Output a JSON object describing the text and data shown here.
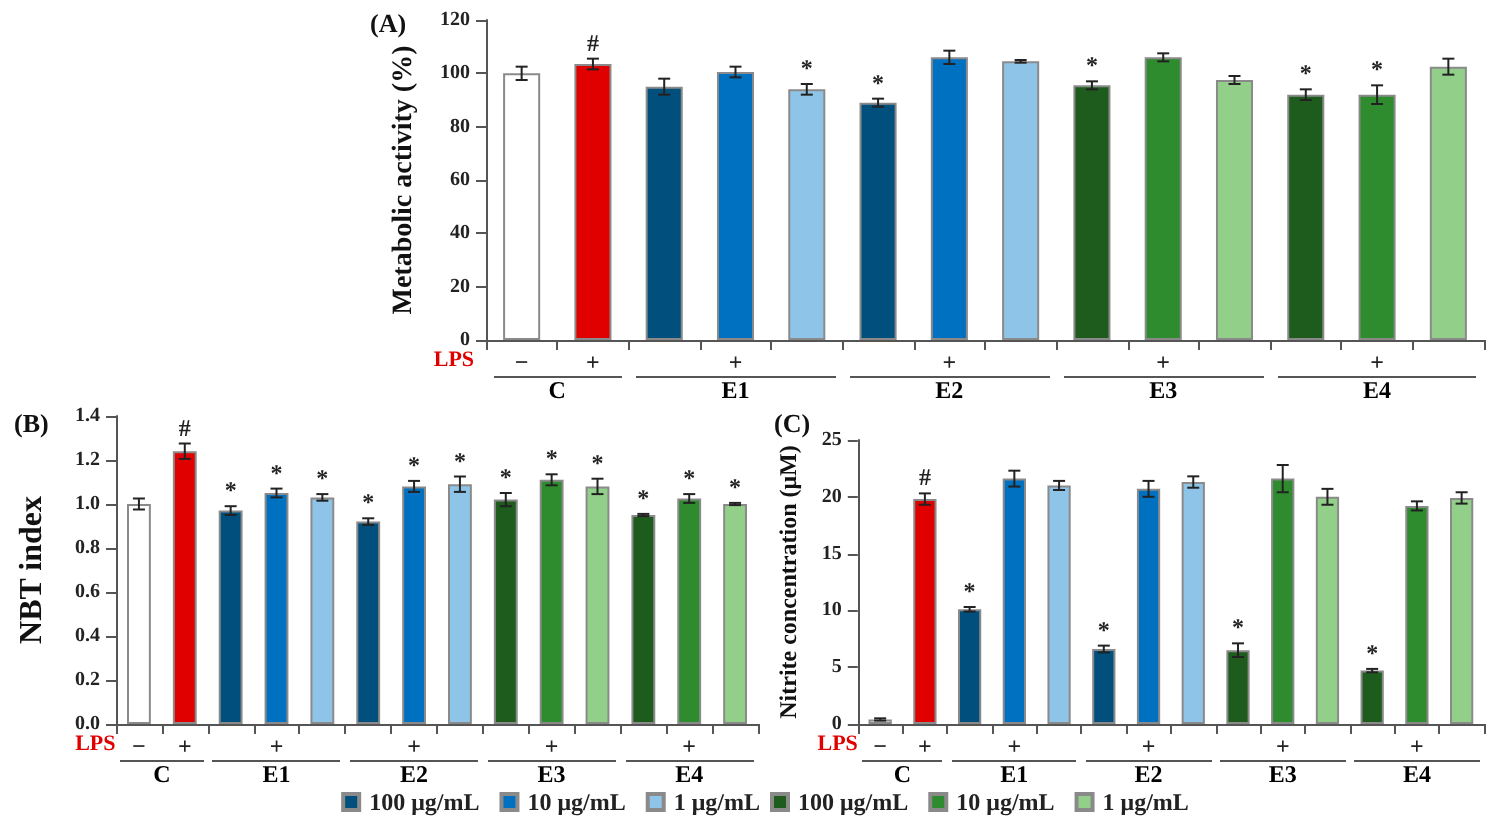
{
  "chart_data": [
    {
      "type": "bar",
      "title": "(A)",
      "ylabel": "Metabolic activity (%)",
      "categories": [
        "−",
        "+",
        null,
        "+",
        null,
        null,
        "+",
        null,
        null,
        "+",
        null,
        null,
        "+",
        null
      ],
      "ylim": [
        0,
        120
      ],
      "yticks": [
        0,
        20,
        40,
        60,
        80,
        100,
        120
      ],
      "stacked": true,
      "grid": false,
      "legend": false,
      "annotations": [
        "LPS",
        "C",
        "E1",
        "E2",
        "E3",
        "E4"
      ],
      "series": [
        {
          "color": "#ffffff",
          "values": [
            100,
            null,
            null,
            null,
            null,
            null,
            null,
            null,
            null,
            null,
            null,
            null,
            null,
            null
          ],
          "errors": [
            2.5,
            null,
            null,
            null,
            null,
            null,
            null,
            null,
            null,
            null,
            null,
            null,
            null,
            null
          ],
          "value_labels": [
            null,
            null,
            null,
            null,
            null,
            null,
            null,
            null,
            null,
            null,
            null,
            null,
            null,
            null
          ]
        },
        {
          "color": "#e00000",
          "values": [
            null,
            103.5,
            null,
            null,
            null,
            null,
            null,
            null,
            null,
            null,
            null,
            null,
            null,
            null
          ],
          "errors": [
            null,
            2,
            null,
            null,
            null,
            null,
            null,
            null,
            null,
            null,
            null,
            null,
            null,
            null
          ],
          "value_labels": [
            null,
            "#",
            null,
            null,
            null,
            null,
            null,
            null,
            null,
            null,
            null,
            null,
            null,
            null
          ]
        },
        {
          "color": "#004f7c",
          "values": [
            null,
            null,
            95,
            null,
            null,
            89,
            null,
            null,
            null,
            null,
            null,
            null,
            null,
            null
          ],
          "errors": [
            null,
            null,
            3,
            null,
            null,
            1.5,
            null,
            null,
            null,
            null,
            null,
            null,
            null,
            null
          ],
          "value_labels": [
            null,
            null,
            null,
            null,
            null,
            "*",
            null,
            null,
            null,
            null,
            null,
            null,
            null,
            null
          ]
        },
        {
          "color": "#0070c0",
          "values": [
            null,
            null,
            null,
            100.5,
            null,
            null,
            106,
            null,
            null,
            null,
            null,
            null,
            null,
            null
          ],
          "errors": [
            null,
            null,
            null,
            2,
            null,
            null,
            2.5,
            null,
            null,
            null,
            null,
            null,
            null,
            null
          ],
          "value_labels": [
            null,
            null,
            null,
            null,
            null,
            null,
            null,
            null,
            null,
            null,
            null,
            null,
            null,
            null
          ]
        },
        {
          "color": "#8ec4e8",
          "values": [
            null,
            null,
            null,
            null,
            94,
            null,
            null,
            104.5,
            null,
            null,
            null,
            null,
            null,
            null
          ],
          "errors": [
            null,
            null,
            null,
            null,
            2,
            null,
            null,
            0.5,
            null,
            null,
            null,
            null,
            null,
            null
          ],
          "value_labels": [
            null,
            null,
            null,
            null,
            "*",
            null,
            null,
            null,
            null,
            null,
            null,
            null,
            null,
            null
          ]
        },
        {
          "color": "#1e5c1e",
          "values": [
            null,
            null,
            null,
            null,
            null,
            null,
            null,
            null,
            95.5,
            null,
            null,
            92,
            null,
            null
          ],
          "errors": [
            null,
            null,
            null,
            null,
            null,
            null,
            null,
            null,
            1.5,
            null,
            null,
            2,
            null,
            null
          ],
          "value_labels": [
            null,
            null,
            null,
            null,
            null,
            null,
            null,
            null,
            "*",
            null,
            null,
            "*",
            null,
            null
          ]
        },
        {
          "color": "#2e8b2e",
          "values": [
            null,
            null,
            null,
            null,
            null,
            null,
            null,
            null,
            null,
            106,
            null,
            null,
            92,
            null
          ],
          "errors": [
            null,
            null,
            null,
            null,
            null,
            null,
            null,
            null,
            null,
            1.5,
            null,
            null,
            3.5,
            null
          ],
          "value_labels": [
            null,
            null,
            null,
            null,
            null,
            null,
            null,
            null,
            null,
            null,
            null,
            null,
            "*",
            null
          ]
        },
        {
          "color": "#92d08a",
          "values": [
            null,
            null,
            null,
            null,
            null,
            null,
            null,
            null,
            null,
            null,
            97.5,
            null,
            null,
            102.5
          ],
          "errors": [
            null,
            null,
            null,
            null,
            null,
            null,
            null,
            null,
            null,
            null,
            1.5,
            null,
            null,
            3
          ],
          "value_labels": [
            null,
            null,
            null,
            null,
            null,
            null,
            null,
            null,
            null,
            null,
            null,
            null,
            null,
            null
          ]
        }
      ]
    },
    {
      "type": "bar",
      "title": "(B)",
      "ylabel": "NBT index",
      "categories": [
        "−",
        "+",
        null,
        "+",
        null,
        null,
        "+",
        null,
        null,
        "+",
        null,
        null,
        "+",
        null
      ],
      "ylim": [
        0,
        1.4
      ],
      "yticks": [
        {
          "value": 0,
          "label": "0.0"
        },
        {
          "value": 0.2,
          "label": "0.2"
        },
        {
          "value": 0.4,
          "label": "0.4"
        },
        {
          "value": 0.6,
          "label": "0.6"
        },
        {
          "value": 0.8,
          "label": "0.8"
        },
        {
          "value": 1,
          "label": "1.0"
        },
        {
          "value": 1.2,
          "label": "1.2"
        },
        {
          "value": 1.4,
          "label": "1.4"
        }
      ],
      "stacked": true,
      "grid": false,
      "legend": "bottom right",
      "annotations": [
        "LPS",
        "C",
        "E1",
        "E2",
        "E3",
        "E4"
      ],
      "series": [
        {
          "color": "#ffffff",
          "values": [
            1.0,
            null,
            null,
            null,
            null,
            null,
            null,
            null,
            null,
            null,
            null,
            null,
            null,
            null
          ],
          "errors": [
            0.025,
            null,
            null,
            null,
            null,
            null,
            null,
            null,
            null,
            null,
            null,
            null,
            null,
            null
          ],
          "value_labels": [
            null,
            null,
            null,
            null,
            null,
            null,
            null,
            null,
            null,
            null,
            null,
            null,
            null,
            null
          ]
        },
        {
          "color": "#e00000",
          "values": [
            null,
            1.24,
            null,
            null,
            null,
            null,
            null,
            null,
            null,
            null,
            null,
            null,
            null,
            null
          ],
          "errors": [
            null,
            0.035,
            null,
            null,
            null,
            null,
            null,
            null,
            null,
            null,
            null,
            null,
            null,
            null
          ],
          "value_labels": [
            null,
            "#",
            null,
            null,
            null,
            null,
            null,
            null,
            null,
            null,
            null,
            null,
            null,
            null
          ]
        },
        {
          "name": "100 μg/mL",
          "color": "#004f7c",
          "values": [
            null,
            null,
            0.97,
            null,
            null,
            0.92,
            null,
            null,
            null,
            null,
            null,
            null,
            null,
            null
          ],
          "errors": [
            null,
            null,
            0.02,
            null,
            null,
            0.015,
            null,
            null,
            null,
            null,
            null,
            null,
            null,
            null
          ],
          "value_labels": [
            null,
            null,
            "*",
            null,
            null,
            "*",
            null,
            null,
            null,
            null,
            null,
            null,
            null,
            null
          ]
        },
        {
          "name": "10 μg/mL",
          "color": "#0070c0",
          "values": [
            null,
            null,
            null,
            1.05,
            null,
            null,
            1.08,
            null,
            null,
            null,
            null,
            null,
            null,
            null
          ],
          "errors": [
            null,
            null,
            null,
            0.02,
            null,
            null,
            0.025,
            null,
            null,
            null,
            null,
            null,
            null,
            null
          ],
          "value_labels": [
            null,
            null,
            null,
            "*",
            null,
            null,
            "*",
            null,
            null,
            null,
            null,
            null,
            null,
            null
          ]
        },
        {
          "name": "1 μg/mL",
          "color": "#8ec4e8",
          "values": [
            null,
            null,
            null,
            null,
            1.03,
            null,
            null,
            1.09,
            null,
            null,
            null,
            null,
            null,
            null
          ],
          "errors": [
            null,
            null,
            null,
            null,
            0.015,
            null,
            null,
            0.035,
            null,
            null,
            null,
            null,
            null,
            null
          ],
          "value_labels": [
            null,
            null,
            null,
            null,
            "*",
            null,
            null,
            "*",
            null,
            null,
            null,
            null,
            null,
            null
          ]
        },
        {
          "color": "#1e5c1e",
          "values": [
            null,
            null,
            null,
            null,
            null,
            null,
            null,
            null,
            1.02,
            null,
            null,
            0.95,
            null,
            null
          ],
          "errors": [
            null,
            null,
            null,
            null,
            null,
            null,
            null,
            null,
            0.03,
            null,
            null,
            0.005,
            null,
            null
          ],
          "value_labels": [
            null,
            null,
            null,
            null,
            null,
            null,
            null,
            null,
            "*",
            null,
            null,
            "*",
            null,
            null
          ]
        },
        {
          "color": "#2e8b2e",
          "values": [
            null,
            null,
            null,
            null,
            null,
            null,
            null,
            null,
            null,
            1.11,
            null,
            null,
            1.025,
            null
          ],
          "errors": [
            null,
            null,
            null,
            null,
            null,
            null,
            null,
            null,
            null,
            0.025,
            null,
            null,
            0.02,
            null
          ],
          "value_labels": [
            null,
            null,
            null,
            null,
            null,
            null,
            null,
            null,
            null,
            "*",
            null,
            null,
            "*",
            null
          ]
        },
        {
          "color": "#92d08a",
          "values": [
            null,
            null,
            null,
            null,
            null,
            null,
            null,
            null,
            null,
            null,
            1.08,
            null,
            null,
            1.0
          ],
          "errors": [
            null,
            null,
            null,
            null,
            null,
            null,
            null,
            null,
            null,
            null,
            0.035,
            null,
            null,
            0.005
          ],
          "value_labels": [
            null,
            null,
            null,
            null,
            null,
            null,
            null,
            null,
            null,
            null,
            "*",
            null,
            null,
            "*"
          ]
        }
      ]
    },
    {
      "type": "bar",
      "title": "(C)",
      "ylabel": "Nitrite concentration (μM)",
      "categories": [
        "−",
        "+",
        null,
        "+",
        null,
        null,
        "+",
        null,
        null,
        "+",
        null,
        null,
        "+",
        null
      ],
      "ylim": [
        0,
        25
      ],
      "yticks": [
        0,
        5,
        10,
        15,
        20,
        25
      ],
      "stacked": true,
      "grid": false,
      "legend": "bottom left",
      "annotations": [
        "LPS",
        "C",
        "E1",
        "E2",
        "E3",
        "E4"
      ],
      "series": [
        {
          "color": "#ffffff",
          "values": [
            0.4,
            null,
            null,
            null,
            null,
            null,
            null,
            null,
            null,
            null,
            null,
            null,
            null,
            null
          ],
          "errors": [
            0.1,
            null,
            null,
            null,
            null,
            null,
            null,
            null,
            null,
            null,
            null,
            null,
            null,
            null
          ],
          "value_labels": [
            null,
            null,
            null,
            null,
            null,
            null,
            null,
            null,
            null,
            null,
            null,
            null,
            null,
            null
          ]
        },
        {
          "color": "#e00000",
          "values": [
            null,
            19.8,
            null,
            null,
            null,
            null,
            null,
            null,
            null,
            null,
            null,
            null,
            null,
            null
          ],
          "errors": [
            null,
            0.5,
            null,
            null,
            null,
            null,
            null,
            null,
            null,
            null,
            null,
            null,
            null,
            null
          ],
          "value_labels": [
            null,
            "#",
            null,
            null,
            null,
            null,
            null,
            null,
            null,
            null,
            null,
            null,
            null,
            null
          ]
        },
        {
          "color": "#004f7c",
          "values": [
            null,
            null,
            10.1,
            null,
            null,
            6.6,
            null,
            null,
            null,
            null,
            null,
            null,
            null,
            null
          ],
          "errors": [
            null,
            null,
            0.2,
            null,
            null,
            0.3,
            null,
            null,
            null,
            null,
            null,
            null,
            null,
            null
          ],
          "value_labels": [
            null,
            null,
            "*",
            null,
            null,
            "*",
            null,
            null,
            null,
            null,
            null,
            null,
            null,
            null
          ]
        },
        {
          "color": "#0070c0",
          "values": [
            null,
            null,
            null,
            21.6,
            null,
            null,
            20.7,
            null,
            null,
            null,
            null,
            null,
            null,
            null
          ],
          "errors": [
            null,
            null,
            null,
            0.7,
            null,
            null,
            0.7,
            null,
            null,
            null,
            null,
            null,
            null,
            null
          ],
          "value_labels": [
            null,
            null,
            null,
            null,
            null,
            null,
            null,
            null,
            null,
            null,
            null,
            null,
            null,
            null
          ]
        },
        {
          "color": "#8ec4e8",
          "values": [
            null,
            null,
            null,
            null,
            21.0,
            null,
            null,
            21.3,
            null,
            null,
            null,
            null,
            null,
            null
          ],
          "errors": [
            null,
            null,
            null,
            null,
            0.4,
            null,
            null,
            0.5,
            null,
            null,
            null,
            null,
            null,
            null
          ],
          "value_labels": [
            null,
            null,
            null,
            null,
            null,
            null,
            null,
            null,
            null,
            null,
            null,
            null,
            null,
            null
          ]
        },
        {
          "name": "100 μg/mL",
          "color": "#1e5c1e",
          "values": [
            null,
            null,
            null,
            null,
            null,
            null,
            null,
            null,
            6.5,
            null,
            null,
            4.7,
            null,
            null
          ],
          "errors": [
            null,
            null,
            null,
            null,
            null,
            null,
            null,
            null,
            0.6,
            null,
            null,
            0.15,
            null,
            null
          ],
          "value_labels": [
            null,
            null,
            null,
            null,
            null,
            null,
            null,
            null,
            "*",
            null,
            null,
            "*",
            null,
            null
          ]
        },
        {
          "name": "10 μg/mL",
          "color": "#2e8b2e",
          "values": [
            null,
            null,
            null,
            null,
            null,
            null,
            null,
            null,
            null,
            21.6,
            null,
            null,
            19.2,
            null
          ],
          "errors": [
            null,
            null,
            null,
            null,
            null,
            null,
            null,
            null,
            null,
            1.2,
            null,
            null,
            0.4,
            null
          ],
          "value_labels": [
            null,
            null,
            null,
            null,
            null,
            null,
            null,
            null,
            null,
            null,
            null,
            null,
            null,
            null
          ]
        },
        {
          "name": "1 μg/mL",
          "color": "#92d08a",
          "values": [
            null,
            null,
            null,
            null,
            null,
            null,
            null,
            null,
            null,
            null,
            20.0,
            null,
            null,
            19.9
          ],
          "errors": [
            null,
            null,
            null,
            null,
            null,
            null,
            null,
            null,
            null,
            null,
            0.7,
            null,
            null,
            0.5
          ],
          "value_labels": [
            null,
            null,
            null,
            null,
            null,
            null,
            null,
            null,
            null,
            null,
            null,
            null,
            null,
            null
          ]
        }
      ]
    }
  ]
}
